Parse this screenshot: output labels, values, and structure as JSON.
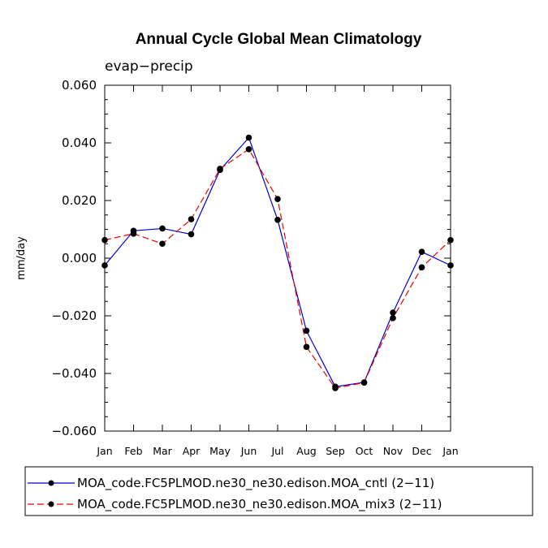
{
  "chart_data": {
    "type": "line",
    "title": "Annual Cycle Global Mean Climatology",
    "subtitle": "evap−precip",
    "xlabel": "",
    "ylabel": "mm/day",
    "categories": [
      "Jan",
      "Feb",
      "Mar",
      "Apr",
      "May",
      "Jun",
      "Jul",
      "Aug",
      "Sep",
      "Oct",
      "Nov",
      "Dec",
      "Jan"
    ],
    "ylim": [
      -0.06,
      0.06
    ],
    "yticks": [
      -0.06,
      -0.04,
      -0.02,
      0.0,
      0.02,
      0.04,
      0.06
    ],
    "ytick_labels": [
      "−0.060",
      "−0.040",
      "−0.020",
      "0.000",
      "0.020",
      "0.040",
      "0.060"
    ],
    "grid": false,
    "legend_position": "bottom",
    "series": [
      {
        "name": "MOA_code.FC5PLMOD.ne30_ne30.edison.MOA_cntl (2−11)",
        "color": "#0000cc",
        "dash": "solid",
        "values": [
          -0.0025,
          0.0095,
          0.0103,
          0.0083,
          0.0306,
          0.0418,
          0.0133,
          -0.0252,
          -0.0446,
          -0.0431,
          -0.0189,
          0.0022,
          -0.0025
        ]
      },
      {
        "name": "MOA_code.FC5PLMOD.ne30_ne30.edison.MOA_mix3 (2−11)",
        "color": "#ee0000",
        "dash": "dashed",
        "values": [
          0.0063,
          0.0085,
          0.005,
          0.0135,
          0.031,
          0.0378,
          0.0205,
          -0.0308,
          -0.0451,
          -0.0432,
          -0.0208,
          -0.0032,
          0.0063
        ]
      }
    ]
  }
}
